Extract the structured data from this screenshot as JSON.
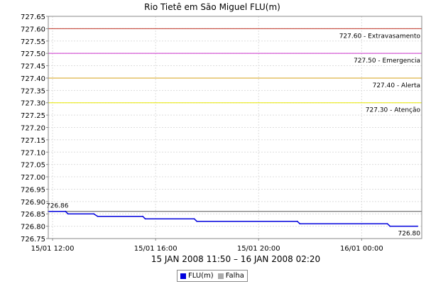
{
  "chart_data": {
    "type": "line",
    "title": "Rio Tietê em São Miguel FLU(m)",
    "subtitle": "15 JAN 2008 11:50 – 16 JAN 2008 02:20",
    "ylim": [
      726.75,
      727.65
    ],
    "y_ticks": [
      "727.65",
      "727.60",
      "727.55",
      "727.50",
      "727.45",
      "727.40",
      "727.35",
      "727.30",
      "727.25",
      "727.20",
      "727.15",
      "727.10",
      "727.05",
      "727.00",
      "726.95",
      "726.90",
      "726.85",
      "726.80",
      "726.75"
    ],
    "x_ticks": [
      {
        "hour": 12,
        "label": "15/01 12:00"
      },
      {
        "hour": 16,
        "label": "15/01 16:00"
      },
      {
        "hour": 20,
        "label": "15/01 20:00"
      },
      {
        "hour": 24,
        "label": "16/01 00:00"
      }
    ],
    "x_range_hours": [
      11.8333,
      26.3333
    ],
    "thresholds": [
      {
        "value": 727.6,
        "label": "727.60 - Extravasamento",
        "color": "#c0392b"
      },
      {
        "value": 727.5,
        "label": "727.50 - Emergencia",
        "color": "#cc33cc"
      },
      {
        "value": 727.4,
        "label": "727.40 - Alerta",
        "color": "#d4a017"
      },
      {
        "value": 727.3,
        "label": "727.30 - Atenção",
        "color": "#e8e800"
      }
    ],
    "reference_line": {
      "value": 726.86,
      "color": "#555555"
    },
    "series": [
      {
        "name": "FLU(m)",
        "color": "#0000dd",
        "points": [
          [
            11.8333,
            726.86
          ],
          [
            12.5,
            726.86
          ],
          [
            12.6,
            726.85
          ],
          [
            13.6,
            726.85
          ],
          [
            13.75,
            726.84
          ],
          [
            15.5,
            726.84
          ],
          [
            15.6,
            726.83
          ],
          [
            17.5,
            726.83
          ],
          [
            17.6,
            726.82
          ],
          [
            21.5,
            726.82
          ],
          [
            21.6,
            726.81
          ],
          [
            25.0,
            726.81
          ],
          [
            25.1,
            726.8
          ],
          [
            26.1667,
            726.8
          ]
        ]
      }
    ],
    "annotations": [
      {
        "text": "726.86",
        "anchor": "start"
      },
      {
        "text": "726.80",
        "anchor": "end"
      }
    ],
    "legend": [
      {
        "label": "FLU(m)",
        "color": "#0000dd"
      },
      {
        "label": "Falha",
        "color": "#aaaaaa"
      }
    ],
    "grid": true
  }
}
